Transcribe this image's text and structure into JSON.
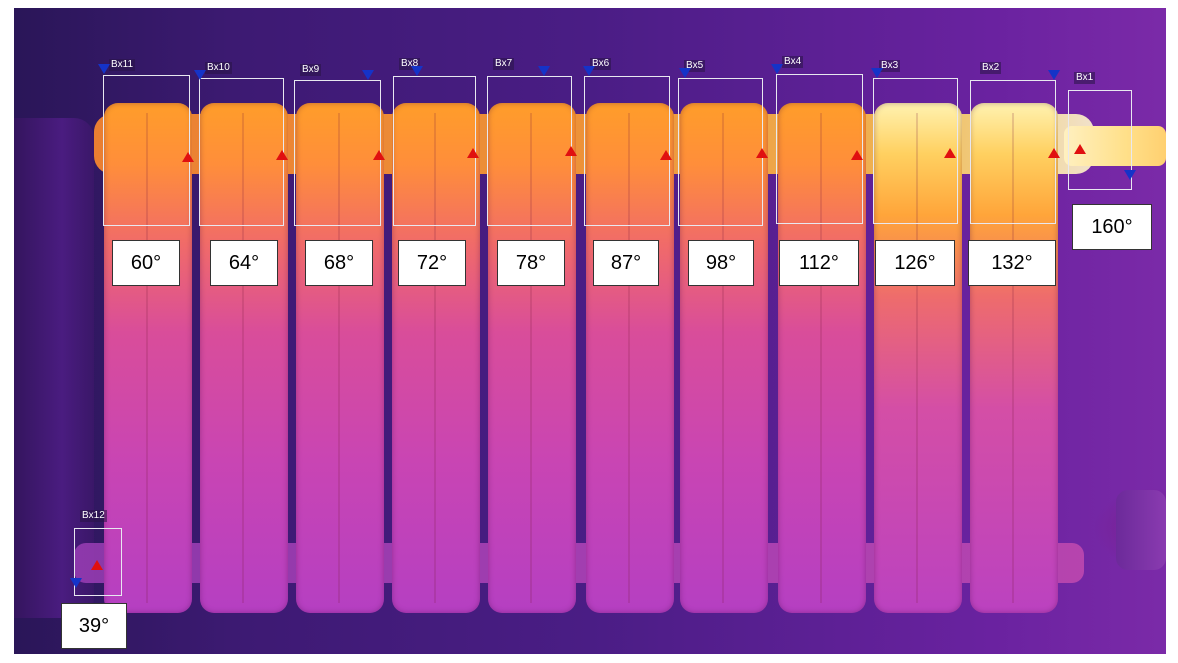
{
  "image": {
    "subject": "radiator",
    "palette": {
      "cold": "#3d1a73",
      "warm": "#d94d9a",
      "hot": "#ff9d2a",
      "hottest": "#fff6d0"
    }
  },
  "boxes": [
    {
      "label": "Bx11",
      "temp": "60°"
    },
    {
      "label": "Bx10",
      "temp": "64°"
    },
    {
      "label": "Bx9",
      "temp": "68°"
    },
    {
      "label": "Bx8",
      "temp": "72°"
    },
    {
      "label": "Bx7",
      "temp": "78°"
    },
    {
      "label": "Bx6",
      "temp": "87°"
    },
    {
      "label": "Bx5",
      "temp": "98°"
    },
    {
      "label": "Bx4",
      "temp": "112°"
    },
    {
      "label": "Bx3",
      "temp": "126°"
    },
    {
      "label": "Bx2",
      "temp": "132°"
    },
    {
      "label": "Bx1",
      "temp": "160°"
    },
    {
      "label": "Bx12",
      "temp": "39°"
    }
  ],
  "markers": {
    "max": "max-temperature-marker",
    "min": "min-temperature-marker"
  }
}
